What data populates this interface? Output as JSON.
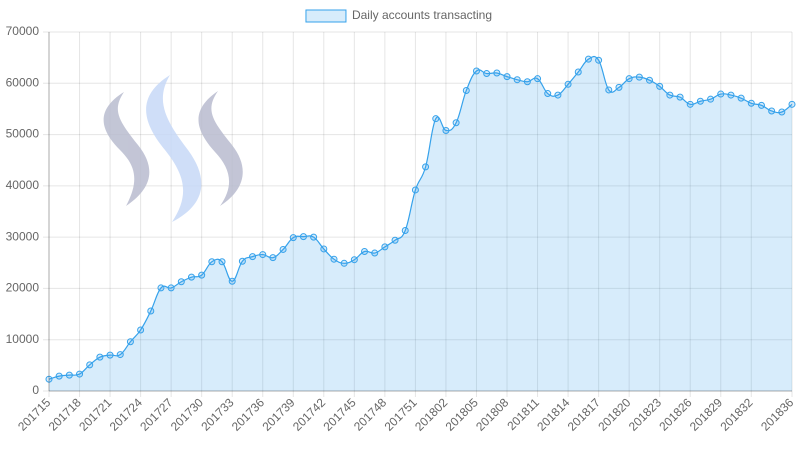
{
  "chart_data": {
    "type": "line",
    "categories": [
      "201715",
      null,
      null,
      "201718",
      null,
      null,
      "201721",
      null,
      null,
      "201724",
      null,
      null,
      "201727",
      null,
      null,
      "201730",
      null,
      null,
      "201733",
      null,
      null,
      "201736",
      null,
      null,
      "201739",
      null,
      null,
      "201742",
      null,
      null,
      "201745",
      null,
      null,
      "201748",
      null,
      null,
      "201751",
      null,
      null,
      "201802",
      null,
      null,
      "201805",
      null,
      null,
      "201808",
      null,
      null,
      "201811",
      null,
      null,
      "201814",
      null,
      null,
      "201817",
      null,
      null,
      "201820",
      null,
      null,
      "201823",
      null,
      null,
      "201826",
      null,
      null,
      "201829",
      null,
      null,
      "201832",
      null,
      null,
      null,
      "201836"
    ],
    "series": [
      {
        "name": "Daily accounts transacting",
        "color": "#36a2eb",
        "fill": "rgba(54,162,235,0.2)",
        "values": [
          2300,
          2900,
          3100,
          3300,
          5100,
          6600,
          7000,
          7100,
          9600,
          11900,
          15600,
          20100,
          20100,
          21300,
          22200,
          22600,
          25200,
          25200,
          21400,
          25300,
          26200,
          26600,
          26000,
          27600,
          29900,
          30100,
          30000,
          27700,
          25700,
          24900,
          25600,
          27200,
          26900,
          28100,
          29400,
          31300,
          39200,
          43700,
          53100,
          50800,
          52300,
          58600,
          62400,
          61900,
          62000,
          61300,
          60700,
          60300,
          60900,
          58000,
          57700,
          59800,
          62200,
          64700,
          64500,
          58700,
          59200,
          60900,
          61200,
          60600,
          59400,
          57700,
          57300,
          55900,
          56500,
          56900,
          57900,
          57700,
          57100,
          56100,
          55700,
          54600,
          54400,
          55900
        ]
      }
    ],
    "ylim": [
      0,
      70000
    ],
    "yticks": [
      0,
      10000,
      20000,
      30000,
      40000,
      50000,
      60000,
      70000
    ],
    "grid": true,
    "legend": "top"
  }
}
